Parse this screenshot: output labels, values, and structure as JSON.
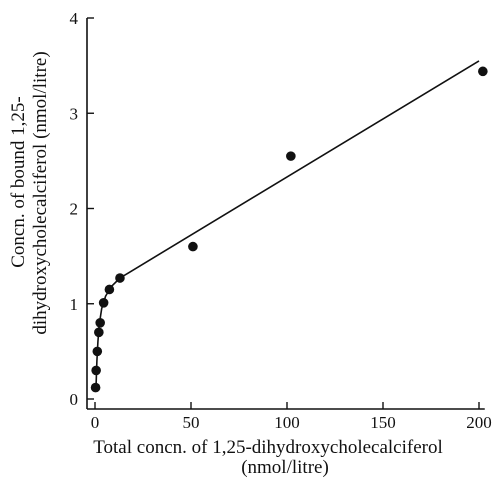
{
  "chart_data": {
    "type": "scatter",
    "xlabel_line1": "Total concn. of 1,25-dihydroxycholecalciferol",
    "xlabel_line2": "(nmol/litre)",
    "ylabel_line1": "Concn. of bound 1,25-",
    "ylabel_line2": "dihydroxycholecalciferol (nmol/litre)",
    "xlim": [
      -3,
      205
    ],
    "ylim": [
      0,
      4
    ],
    "xticks": [
      0,
      50,
      100,
      150,
      200
    ],
    "yticks": [
      0,
      1,
      2,
      3,
      4
    ],
    "points": [
      {
        "x": 0.3,
        "y": 0.12
      },
      {
        "x": 0.6,
        "y": 0.3
      },
      {
        "x": 1.2,
        "y": 0.5
      },
      {
        "x": 2.0,
        "y": 0.7
      },
      {
        "x": 2.7,
        "y": 0.8
      },
      {
        "x": 4.5,
        "y": 1.01
      },
      {
        "x": 7.5,
        "y": 1.15
      },
      {
        "x": 13,
        "y": 1.27
      },
      {
        "x": 51,
        "y": 1.6
      },
      {
        "x": 102,
        "y": 2.55
      },
      {
        "x": 202,
        "y": 3.44
      }
    ],
    "fit_curve": [
      {
        "x": 0.5,
        "y": 0.12
      },
      {
        "x": 1.0,
        "y": 0.4
      },
      {
        "x": 1.5,
        "y": 0.6
      },
      {
        "x": 2.2,
        "y": 0.78
      },
      {
        "x": 3.5,
        "y": 0.95
      },
      {
        "x": 5.5,
        "y": 1.08
      },
      {
        "x": 8.5,
        "y": 1.18
      },
      {
        "x": 13,
        "y": 1.27
      },
      {
        "x": 200,
        "y": 3.55
      }
    ],
    "grid": false,
    "colors": {
      "marks": "#111111",
      "background": "#ffffff"
    }
  }
}
